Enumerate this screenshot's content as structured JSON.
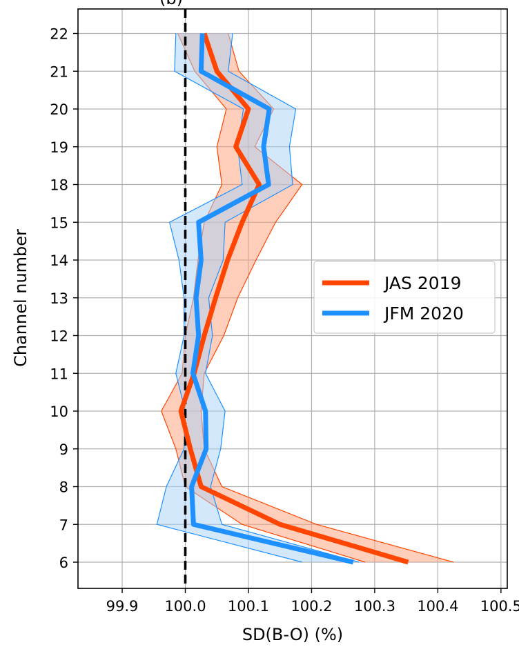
{
  "chart_data": {
    "type": "line",
    "title": "(b)",
    "xlabel": "SD(B-O) (%)",
    "ylabel": "Channel number",
    "categories": [
      "6",
      "7",
      "8",
      "9",
      "10",
      "11",
      "12",
      "13",
      "14",
      "15",
      "18",
      "19",
      "20",
      "21",
      "22"
    ],
    "xlim": [
      99.83,
      100.51
    ],
    "xticks": [
      99.9,
      100.0,
      100.1,
      100.2,
      100.3,
      100.4,
      100.5
    ],
    "xtick_labels": [
      "99.9",
      "100.0",
      "100.1",
      "100.2",
      "100.3",
      "100.4",
      "100.5"
    ],
    "grid": true,
    "legend_position": "center-right",
    "reference_line": {
      "x": 100.0,
      "style": "dashed",
      "color": "#000000"
    },
    "series": [
      {
        "name": "JAS 2019",
        "color": "#ff4500",
        "fill_color": "#ffa07a",
        "values": [
          100.353,
          100.15,
          100.025,
          100.008,
          99.993,
          100.014,
          100.03,
          100.048,
          100.067,
          100.09,
          100.117,
          100.08,
          100.1,
          100.05,
          100.03
        ],
        "lower": [
          100.285,
          100.09,
          100.0,
          99.985,
          99.962,
          99.995,
          100.0,
          100.013,
          100.02,
          100.03,
          100.058,
          100.05,
          100.065,
          100.015,
          99.988
        ],
        "upper": [
          100.425,
          100.208,
          100.058,
          100.03,
          100.025,
          100.03,
          100.061,
          100.083,
          100.112,
          100.143,
          100.185,
          100.11,
          100.14,
          100.085,
          100.068
        ]
      },
      {
        "name": "JFM 2020",
        "color": "#1e90ff",
        "fill_color": "#a9d1f7",
        "values": [
          100.266,
          100.013,
          100.01,
          100.033,
          100.032,
          100.012,
          100.021,
          100.017,
          100.025,
          100.021,
          100.132,
          100.124,
          100.133,
          100.025,
          100.027
        ],
        "lower": [
          100.185,
          99.955,
          99.97,
          99.998,
          100.0,
          99.985,
          99.998,
          99.998,
          99.99,
          99.975,
          100.09,
          100.083,
          100.092,
          99.983,
          99.985
        ],
        "upper": [
          100.275,
          100.058,
          100.04,
          100.056,
          100.063,
          100.032,
          100.043,
          100.037,
          100.06,
          100.063,
          100.17,
          100.165,
          100.175,
          100.068,
          100.075
        ]
      }
    ]
  }
}
